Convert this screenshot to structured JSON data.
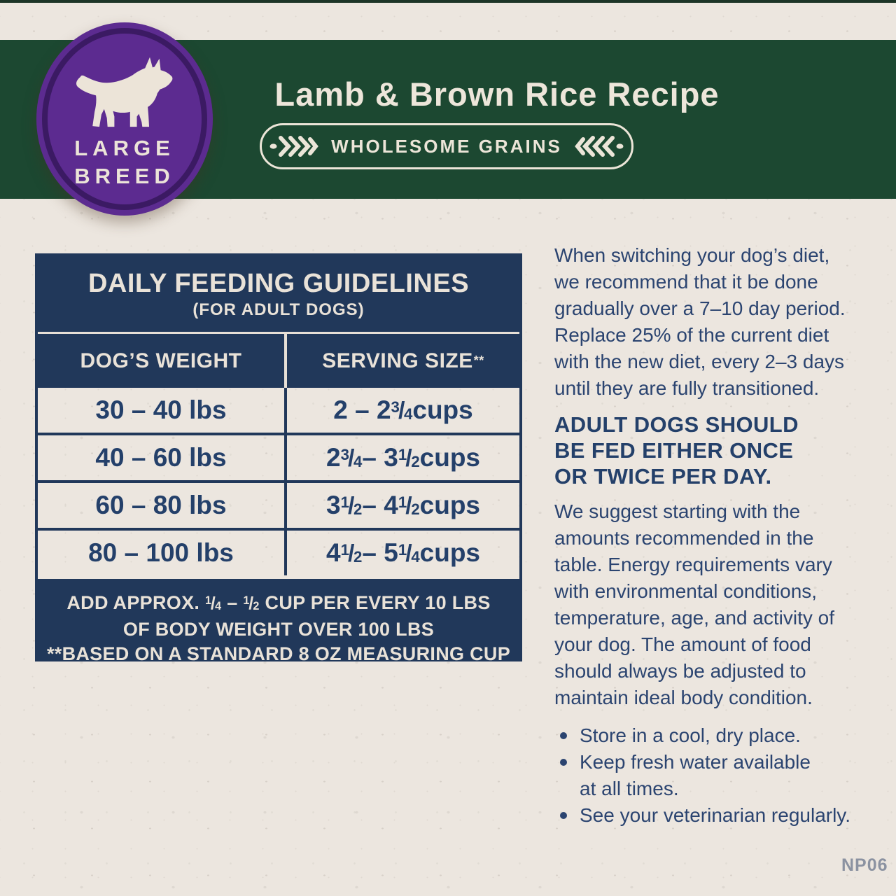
{
  "badge": {
    "line1": "LARGE",
    "line2": "BREED"
  },
  "banner": {
    "title": "Lamb & Brown Rice Recipe",
    "pill_label": "WHOLESOME GRAINS"
  },
  "icons": {
    "dog": "dog-silhouette-icon",
    "pill_left": "wheat-sprig-left-icon",
    "pill_right": "wheat-sprig-right-icon"
  },
  "table": {
    "title": "DAILY FEEDING GUIDELINES",
    "subtitle": "(FOR ADULT DOGS)",
    "col1_header": "DOG’S WEIGHT",
    "col2_header": "SERVING SIZE",
    "col2_header_sup": "**",
    "rows": [
      {
        "weight": "30 – 40 lbs",
        "serving": "2 – 2 3/4 cups"
      },
      {
        "weight": "40 – 60 lbs",
        "serving": "2 3/4 – 3 1/2 cups"
      },
      {
        "weight": "60 – 80 lbs",
        "serving": "3 1/2 – 4 1/2 cups"
      },
      {
        "weight": "80 – 100 lbs",
        "serving": "4 1/2 – 5 1/4 cups"
      }
    ],
    "footer_line1": "ADD APPROX. 1/4 – 1/2 CUP PER EVERY 10 LBS",
    "footer_line2": "OF BODY WEIGHT OVER 100 LBS",
    "footer_note": "**BASED ON A STANDARD 8 OZ MEASURING CUP"
  },
  "info": {
    "para1": "When switching your dog’s diet,\nwe recommend that it be done\ngradually over a 7–10 day period.\nReplace 25% of the current diet\nwith the new diet, every 2–3 days\nuntil they are fully transitioned.",
    "heading": "ADULT DOGS SHOULD\nBE FED EITHER ONCE\nOR TWICE PER DAY.",
    "para2": "We suggest starting with the\namounts recommended in the\ntable. Energy requirements vary\nwith environmental conditions,\ntemperature, age, and activity of\nyour dog. The amount of food\nshould always be adjusted to\nmaintain ideal body condition.",
    "bullets": [
      "Store in a cool, dry place.",
      "Keep fresh water available\nat all times.",
      "See your veterinarian regularly."
    ]
  },
  "footer_code": "NP06",
  "colors": {
    "green": "#1c4831",
    "navy_block": "#21385a",
    "navy_text": "#2b4470",
    "beige": "#ece6df",
    "cream": "#ece5d8",
    "purple": "#5c2b90",
    "purple_dark": "#3b1a63",
    "code_gray": "#8b92a1"
  }
}
